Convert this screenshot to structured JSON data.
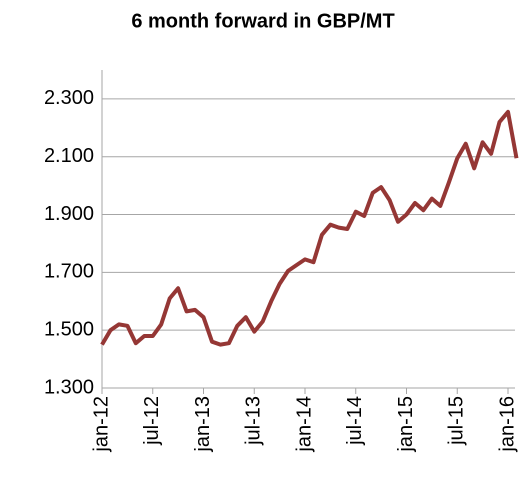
{
  "chart_data": {
    "type": "line",
    "title": "6 month forward in GBP/MT",
    "categories": [
      "jan-12",
      null,
      null,
      null,
      null,
      null,
      "jul-12",
      null,
      null,
      null,
      null,
      null,
      "jan-13",
      null,
      null,
      null,
      null,
      null,
      "jul-13",
      null,
      null,
      null,
      null,
      null,
      "jan-14",
      null,
      null,
      null,
      null,
      null,
      "jul-14",
      null,
      null,
      null,
      null,
      null,
      "jan-15",
      null,
      null,
      null,
      null,
      null,
      "jul-15",
      null,
      null,
      null,
      null,
      null,
      "jan-16",
      null
    ],
    "series": [
      {
        "name": "6 month forward",
        "color": "#953735",
        "values": [
          1450,
          1500,
          1520,
          1515,
          1455,
          1480,
          1480,
          1520,
          1610,
          1645,
          1565,
          1570,
          1545,
          1460,
          1450,
          1455,
          1515,
          1545,
          1495,
          1530,
          1600,
          1660,
          1705,
          1725,
          1745,
          1735,
          1830,
          1865,
          1855,
          1850,
          1910,
          1895,
          1975,
          1995,
          1950,
          1875,
          1900,
          1940,
          1915,
          1955,
          1930,
          2010,
          2095,
          2145,
          2060,
          2150,
          2110,
          2220,
          2255,
          2095
        ]
      }
    ],
    "ylim": [
      1300,
      2400
    ],
    "yticks": [
      {
        "value": 1300,
        "label": "1.300"
      },
      {
        "value": 1500,
        "label": "1.500"
      },
      {
        "value": 1700,
        "label": "1.700"
      },
      {
        "value": 1900,
        "label": "1.900"
      },
      {
        "value": 2100,
        "label": "2.100"
      },
      {
        "value": 2300,
        "label": "2.300"
      }
    ],
    "grid": true
  }
}
